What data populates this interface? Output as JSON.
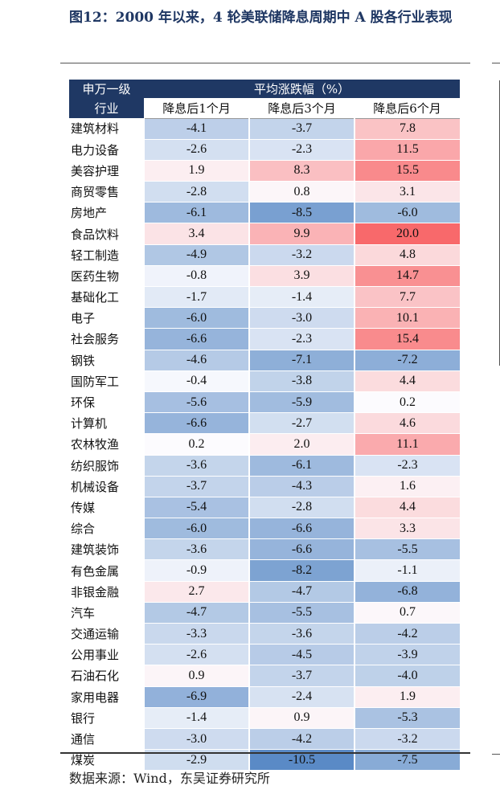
{
  "title": "图12：2000 年以来，4 轮美联储降息周期中 A 股各行业表现",
  "table": {
    "corner_label": "申万一级行业",
    "group_header": "平均涨跌幅（%）",
    "columns": [
      "降息后1个月",
      "降息后3个月",
      "降息后6个月"
    ],
    "rows": [
      {
        "name": "建筑材料",
        "values": [
          "-4.1",
          "-3.7",
          "7.8"
        ]
      },
      {
        "name": "电力设备",
        "values": [
          "-2.6",
          "-2.3",
          "11.5"
        ]
      },
      {
        "name": "美容护理",
        "values": [
          "1.9",
          "8.3",
          "15.5"
        ]
      },
      {
        "name": "商贸零售",
        "values": [
          "-2.8",
          "0.8",
          "3.1"
        ]
      },
      {
        "name": "房地产",
        "values": [
          "-6.1",
          "-8.5",
          "-6.0"
        ]
      },
      {
        "name": "食品饮料",
        "values": [
          "3.4",
          "9.9",
          "20.0"
        ]
      },
      {
        "name": "轻工制造",
        "values": [
          "-4.9",
          "-3.2",
          "4.8"
        ]
      },
      {
        "name": "医药生物",
        "values": [
          "-0.8",
          "3.9",
          "14.7"
        ]
      },
      {
        "name": "基础化工",
        "values": [
          "-1.7",
          "-1.4",
          "7.7"
        ]
      },
      {
        "name": "电子",
        "values": [
          "-6.0",
          "-3.0",
          "10.1"
        ]
      },
      {
        "name": "社会服务",
        "values": [
          "-6.6",
          "-2.3",
          "15.4"
        ]
      },
      {
        "name": "钢铁",
        "values": [
          "-4.6",
          "-7.1",
          "-7.2"
        ]
      },
      {
        "name": "国防军工",
        "values": [
          "-0.4",
          "-3.8",
          "4.4"
        ]
      },
      {
        "name": "环保",
        "values": [
          "-5.6",
          "-5.9",
          "0.2"
        ]
      },
      {
        "name": "计算机",
        "values": [
          "-6.6",
          "-2.7",
          "4.6"
        ]
      },
      {
        "name": "农林牧渔",
        "values": [
          "0.2",
          "2.0",
          "11.1"
        ]
      },
      {
        "name": "纺织服饰",
        "values": [
          "-3.6",
          "-6.1",
          "-2.3"
        ]
      },
      {
        "name": "机械设备",
        "values": [
          "-3.7",
          "-4.3",
          "1.6"
        ]
      },
      {
        "name": "传媒",
        "values": [
          "-5.4",
          "-2.8",
          "4.4"
        ]
      },
      {
        "name": "综合",
        "values": [
          "-6.0",
          "-6.6",
          "3.3"
        ]
      },
      {
        "name": "建筑装饰",
        "values": [
          "-3.6",
          "-6.6",
          "-5.5"
        ]
      },
      {
        "name": "有色金属",
        "values": [
          "-0.9",
          "-8.2",
          "-1.1"
        ]
      },
      {
        "name": "非银金融",
        "values": [
          "2.7",
          "-4.7",
          "-6.8"
        ]
      },
      {
        "name": "汽车",
        "values": [
          "-4.7",
          "-5.5",
          "0.7"
        ]
      },
      {
        "name": "交通运输",
        "values": [
          "-3.3",
          "-3.6",
          "-4.2"
        ]
      },
      {
        "name": "公用事业",
        "values": [
          "-2.6",
          "-4.5",
          "-3.9"
        ]
      },
      {
        "name": "石油石化",
        "values": [
          "0.9",
          "-3.7",
          "-4.0"
        ]
      },
      {
        "name": "家用电器",
        "values": [
          "-6.9",
          "-2.4",
          "1.9"
        ]
      },
      {
        "name": "银行",
        "values": [
          "-1.4",
          "0.9",
          "-5.3"
        ]
      },
      {
        "name": "通信",
        "values": [
          "-3.0",
          "-4.2",
          "-3.2"
        ]
      },
      {
        "name": "煤炭",
        "values": [
          "-2.9",
          "-10.5",
          "-7.5"
        ]
      }
    ]
  },
  "colors": {
    "header_bg": "#1f3864",
    "title_color": "#1f3763",
    "positive_max": "#f8696b",
    "negative_max": "#5a8ac6",
    "neutral": "#fcfcff"
  },
  "source": "数据来源：Wind，东吴证券研究所"
}
